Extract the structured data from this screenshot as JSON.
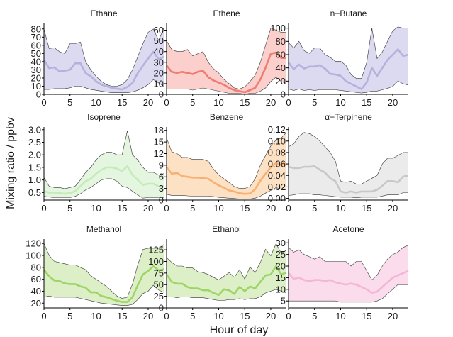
{
  "figure": {
    "ylabel": "Mixing ratio / ppbv",
    "xlabel": "Hour of day"
  },
  "chart_data": [
    {
      "type": "area",
      "title": "Ethane",
      "fill": "#dcdaf0",
      "line": "#b6b0dc",
      "xlim": [
        0,
        23
      ],
      "ylim": [
        0,
        85
      ],
      "xticks": [
        0,
        5,
        10,
        15,
        20
      ],
      "yticks": [
        0,
        10,
        20,
        30,
        40,
        50,
        60,
        70,
        80
      ],
      "x": [
        0,
        1,
        2,
        3,
        4,
        5,
        6,
        7,
        8,
        9,
        10,
        11,
        12,
        13,
        14,
        15,
        16,
        17,
        18,
        19,
        20,
        21,
        22,
        23
      ],
      "median": [
        42,
        32,
        33,
        28,
        29,
        30,
        38,
        38,
        26,
        22,
        16,
        12,
        10,
        8,
        7,
        6,
        9,
        14,
        26,
        35,
        44,
        52,
        43,
        46
      ],
      "upper": [
        80,
        56,
        57,
        52,
        50,
        62,
        62,
        64,
        40,
        30,
        22,
        16,
        12,
        10,
        10,
        12,
        18,
        30,
        46,
        62,
        76,
        80,
        66,
        81
      ],
      "lower": [
        6,
        6,
        7,
        7,
        7,
        8,
        10,
        10,
        8,
        6,
        5,
        4,
        3,
        2,
        2,
        2,
        2,
        3,
        5,
        8,
        12,
        18,
        14,
        10
      ]
    },
    {
      "type": "area",
      "title": "Ethene",
      "fill": "#fbcfcc",
      "line": "#ef7d74",
      "xlim": [
        0,
        23
      ],
      "ylim": [
        0,
        65
      ],
      "xticks": [
        0,
        5,
        10,
        15,
        20
      ],
      "yticks": [
        0,
        10,
        20,
        30,
        40,
        50,
        60
      ],
      "x": [
        0,
        1,
        2,
        3,
        4,
        5,
        6,
        7,
        8,
        9,
        10,
        11,
        12,
        13,
        14,
        15,
        16,
        17,
        18,
        19,
        20,
        21,
        22,
        23
      ],
      "median": [
        27,
        21,
        20,
        21,
        20,
        19,
        21,
        22,
        16,
        13,
        11,
        9,
        6,
        4,
        3,
        2,
        4,
        6,
        14,
        25,
        38,
        39,
        34,
        34
      ],
      "upper": [
        50,
        42,
        40,
        40,
        42,
        36,
        38,
        40,
        30,
        24,
        20,
        14,
        10,
        6,
        5,
        7,
        12,
        18,
        30,
        46,
        62,
        60,
        58,
        58
      ],
      "lower": [
        5,
        5,
        5,
        5,
        5,
        4,
        5,
        6,
        5,
        4,
        3,
        2,
        1,
        1,
        1,
        0,
        1,
        1,
        3,
        6,
        12,
        16,
        12,
        10
      ]
    },
    {
      "type": "area",
      "title": "n−Butane",
      "fill": "#dcdaf0",
      "line": "#b6b0dc",
      "xlim": [
        0,
        23
      ],
      "ylim": [
        0,
        105
      ],
      "xticks": [
        0,
        5,
        10,
        15,
        20
      ],
      "yticks": [
        0,
        20,
        40,
        60,
        80,
        100
      ],
      "x": [
        0,
        1,
        2,
        3,
        4,
        5,
        6,
        7,
        8,
        9,
        10,
        11,
        12,
        13,
        14,
        15,
        16,
        17,
        18,
        19,
        20,
        21,
        22,
        23
      ],
      "median": [
        48,
        38,
        45,
        39,
        42,
        42,
        44,
        39,
        31,
        30,
        28,
        20,
        16,
        12,
        8,
        18,
        40,
        28,
        40,
        52,
        60,
        68,
        58,
        60
      ],
      "upper": [
        78,
        70,
        80,
        66,
        62,
        70,
        70,
        60,
        56,
        50,
        50,
        44,
        30,
        24,
        24,
        48,
        100,
        54,
        64,
        80,
        96,
        102,
        100,
        100
      ],
      "lower": [
        8,
        6,
        8,
        6,
        7,
        6,
        7,
        7,
        7,
        7,
        6,
        5,
        4,
        3,
        2,
        3,
        5,
        5,
        7,
        9,
        12,
        20,
        16,
        14
      ]
    },
    {
      "type": "area",
      "title": "Isoprene",
      "fill": "#e5f6e0",
      "line": "#c5ebbb",
      "xlim": [
        0,
        23
      ],
      "ylim": [
        0.2,
        3.05
      ],
      "xticks": [
        0,
        5,
        10,
        15,
        20
      ],
      "yticks": [
        0.5,
        1.0,
        1.5,
        2.0,
        2.5,
        3.0
      ],
      "ytick_labels": [
        "0.5",
        "1.0",
        "1.5",
        "2.0",
        "2.5",
        "3.0"
      ],
      "x": [
        0,
        1,
        2,
        3,
        4,
        5,
        6,
        7,
        8,
        9,
        10,
        11,
        12,
        13,
        14,
        15,
        16,
        17,
        18,
        19,
        20,
        21,
        22,
        23
      ],
      "median": [
        0.55,
        0.5,
        0.5,
        0.48,
        0.45,
        0.48,
        0.55,
        0.75,
        0.95,
        1.05,
        1.25,
        1.4,
        1.5,
        1.5,
        1.45,
        1.35,
        1.55,
        1.2,
        1.0,
        0.8,
        0.85,
        0.85,
        0.75,
        0.75
      ],
      "upper": [
        1.1,
        0.75,
        0.7,
        0.7,
        0.65,
        0.7,
        0.75,
        1.0,
        1.3,
        1.5,
        1.8,
        2.0,
        2.1,
        2.1,
        2.0,
        2.0,
        2.95,
        2.0,
        1.8,
        1.5,
        1.3,
        1.3,
        1.2,
        1.25
      ],
      "lower": [
        0.35,
        0.32,
        0.3,
        0.3,
        0.3,
        0.3,
        0.35,
        0.45,
        0.6,
        0.7,
        0.85,
        1.0,
        1.05,
        1.05,
        0.95,
        0.75,
        0.7,
        0.55,
        0.4,
        0.28,
        0.3,
        0.3,
        0.3,
        0.3
      ]
    },
    {
      "type": "area",
      "title": "Benzene",
      "fill": "#fde1c5",
      "line": "#f8b173",
      "xlim": [
        0,
        23
      ],
      "ylim": [
        0,
        18.5
      ],
      "xticks": [
        0,
        5,
        10,
        15,
        20
      ],
      "yticks": [
        0,
        3,
        6,
        9,
        12,
        15,
        18
      ],
      "x": [
        0,
        1,
        2,
        3,
        4,
        5,
        6,
        7,
        8,
        9,
        10,
        11,
        12,
        13,
        14,
        15,
        16,
        17,
        18,
        19,
        20,
        21,
        22,
        23
      ],
      "median": [
        8.5,
        6.8,
        7.0,
        6.2,
        6.0,
        5.8,
        5.8,
        5.7,
        5.5,
        4.6,
        3.8,
        3.2,
        2.5,
        2.2,
        1.8,
        1.6,
        1.7,
        2.8,
        5.0,
        6.8,
        8.5,
        9.5,
        9.0,
        9.6
      ],
      "upper": [
        16,
        12.5,
        12,
        11,
        11,
        10.5,
        10.5,
        10.5,
        10,
        8,
        6.5,
        5.5,
        4.5,
        3.5,
        3,
        3,
        3.5,
        5.5,
        9,
        11.5,
        14,
        15.5,
        16,
        17.5
      ],
      "lower": [
        1.5,
        1.2,
        1.2,
        1.2,
        1.1,
        1.0,
        1.0,
        1.0,
        1.0,
        0.9,
        0.7,
        0.6,
        0.5,
        0.4,
        0.3,
        0.3,
        0.3,
        0.5,
        1.0,
        1.8,
        2.5,
        3.2,
        2.8,
        2.6
      ]
    },
    {
      "type": "area",
      "title": "α−Terpinene",
      "fill": "#ebebeb",
      "line": "#c8c8c8",
      "xlim": [
        0,
        23
      ],
      "ylim": [
        -0.003,
        0.122
      ],
      "xticks": [
        0,
        5,
        10,
        15,
        20
      ],
      "yticks": [
        0,
        0.02,
        0.04,
        0.06,
        0.08,
        0.1,
        0.12
      ],
      "ytick_labels": [
        "0.00",
        "0.02",
        "0.04",
        "0.06",
        "0.08",
        "0.10",
        "0.12"
      ],
      "x": [
        0,
        1,
        2,
        3,
        4,
        5,
        6,
        7,
        8,
        9,
        10,
        11,
        12,
        13,
        14,
        15,
        16,
        17,
        18,
        19,
        20,
        21,
        22,
        23
      ],
      "median": [
        0.055,
        0.053,
        0.053,
        0.055,
        0.055,
        0.056,
        0.05,
        0.045,
        0.035,
        0.03,
        0.012,
        0.01,
        0.012,
        0.01,
        0.012,
        0.012,
        0.012,
        0.015,
        0.022,
        0.03,
        0.03,
        0.028,
        0.038,
        0.04
      ],
      "upper": [
        0.09,
        0.095,
        0.108,
        0.115,
        0.113,
        0.108,
        0.1,
        0.09,
        0.08,
        0.065,
        0.03,
        0.028,
        0.03,
        0.025,
        0.025,
        0.03,
        0.035,
        0.04,
        0.06,
        0.07,
        0.07,
        0.075,
        0.08,
        0.08
      ],
      "lower": [
        0.005,
        0.006,
        0.008,
        0.008,
        0.008,
        0.006,
        0.006,
        0.005,
        0.004,
        0.003,
        0.002,
        0.002,
        0.002,
        0.001,
        0.002,
        0.002,
        0.002,
        0.002,
        0.004,
        0.006,
        0.006,
        0.006,
        0.01,
        0.01
      ]
    },
    {
      "type": "area",
      "title": "Methanol",
      "fill": "#ddefc7",
      "line": "#9fd467",
      "xlim": [
        0,
        23
      ],
      "ylim": [
        12,
        125
      ],
      "xticks": [
        0,
        5,
        10,
        15,
        20
      ],
      "yticks": [
        20,
        40,
        60,
        80,
        100,
        120
      ],
      "x": [
        0,
        1,
        2,
        3,
        4,
        5,
        6,
        7,
        8,
        9,
        10,
        11,
        12,
        13,
        14,
        15,
        16,
        17,
        18,
        19,
        20,
        21,
        22,
        23
      ],
      "median": [
        76,
        65,
        58,
        57,
        53,
        52,
        52,
        48,
        46,
        38,
        38,
        32,
        30,
        27,
        24,
        22,
        22,
        30,
        50,
        68,
        74,
        82,
        75,
        77
      ],
      "upper": [
        120,
        100,
        90,
        88,
        86,
        84,
        84,
        80,
        76,
        66,
        60,
        54,
        48,
        40,
        32,
        28,
        30,
        52,
        84,
        110,
        112,
        112,
        112,
        118
      ],
      "lower": [
        30,
        32,
        30,
        30,
        30,
        30,
        30,
        28,
        26,
        24,
        22,
        20,
        19,
        18,
        17,
        16,
        16,
        18,
        26,
        36,
        40,
        50,
        42,
        38
      ]
    },
    {
      "type": "area",
      "title": "Ethanol",
      "fill": "#ddefc7",
      "line": "#9fd467",
      "xlim": [
        0,
        23
      ],
      "ylim": [
        0,
        145
      ],
      "xticks": [
        0,
        5,
        10,
        15,
        20
      ],
      "yticks": [
        0,
        25,
        50,
        75,
        100,
        125
      ],
      "x": [
        0,
        1,
        2,
        3,
        4,
        5,
        6,
        7,
        8,
        9,
        10,
        11,
        12,
        13,
        14,
        15,
        16,
        17,
        18,
        19,
        20,
        21,
        22,
        23
      ],
      "median": [
        72,
        56,
        52,
        52,
        45,
        42,
        42,
        38,
        38,
        32,
        28,
        40,
        38,
        30,
        45,
        36,
        46,
        42,
        56,
        70,
        72,
        90,
        72,
        76
      ],
      "upper": [
        108,
        98,
        90,
        90,
        86,
        86,
        78,
        76,
        72,
        66,
        60,
        68,
        76,
        66,
        82,
        62,
        88,
        76,
        98,
        126,
        112,
        138,
        118,
        124
      ],
      "lower": [
        24,
        24,
        22,
        24,
        24,
        22,
        22,
        22,
        20,
        18,
        16,
        16,
        18,
        18,
        20,
        18,
        20,
        20,
        24,
        32,
        36,
        40,
        36,
        32
      ]
    },
    {
      "type": "area",
      "title": "Acetone",
      "fill": "#fbdcec",
      "line": "#f5b6d4",
      "xlim": [
        0,
        23
      ],
      "ylim": [
        2,
        31
      ],
      "xticks": [
        0,
        5,
        10,
        15,
        20
      ],
      "yticks": [
        5,
        10,
        15,
        20,
        25,
        30
      ],
      "x": [
        0,
        1,
        2,
        3,
        4,
        5,
        6,
        7,
        8,
        9,
        10,
        11,
        12,
        13,
        14,
        15,
        16,
        17,
        18,
        19,
        20,
        21,
        22,
        23
      ],
      "median": [
        17,
        14.5,
        15,
        14,
        13.5,
        14,
        14,
        13.5,
        14,
        13,
        12.5,
        12,
        12.5,
        12,
        11,
        10,
        8.5,
        9,
        11,
        13,
        15,
        16,
        17,
        18
      ],
      "upper": [
        28,
        26,
        27,
        25,
        24,
        23,
        24,
        22,
        22,
        22,
        22,
        22,
        20,
        22,
        22,
        18,
        14,
        16,
        20,
        23,
        25,
        26,
        28,
        29
      ],
      "lower": [
        5,
        5,
        5,
        5,
        5,
        5,
        5,
        5,
        5,
        5,
        4.5,
        4.5,
        4.5,
        4.5,
        4.5,
        4.5,
        4.5,
        5,
        6,
        8,
        10,
        12,
        12,
        12
      ]
    }
  ]
}
